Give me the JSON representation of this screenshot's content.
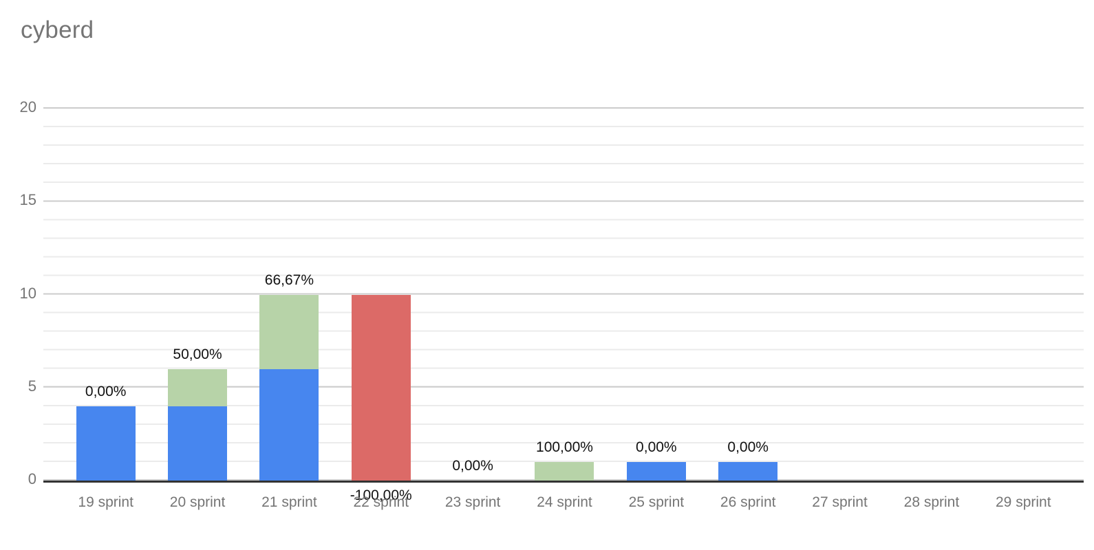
{
  "title": "cyberd",
  "colors": {
    "bar_blue": "#4786ef",
    "bar_green": "#b7d3a8",
    "bar_red": "#dc6a67",
    "axis_line": "#333333",
    "grid_major": "#cccccc",
    "grid_minor": "#ebebeb",
    "axis_text": "#757575",
    "bar_label_text": "#111111",
    "title_text": "#757575",
    "background": "#ffffff"
  },
  "chart_data": {
    "type": "bar",
    "stacked": true,
    "title": "cyberd",
    "xlabel": "",
    "ylabel": "",
    "grid": true,
    "legend": "none",
    "y_axis": {
      "min": 0,
      "max": 20,
      "major_step": 5,
      "minor_step": 1,
      "ticks": [
        0,
        5,
        10,
        15,
        20
      ]
    },
    "categories": [
      "19 sprint",
      "20 sprint",
      "21 sprint",
      "22 sprint",
      "23 sprint",
      "24 sprint",
      "25 sprint",
      "26 sprint",
      "27 sprint",
      "28 sprint",
      "29 sprint"
    ],
    "series": [
      {
        "name": "series-blue",
        "color": "#4786ef",
        "values": [
          4,
          4,
          6,
          0,
          0,
          0,
          1,
          1,
          0,
          0,
          0
        ]
      },
      {
        "name": "series-green",
        "color": "#b7d3a8",
        "values": [
          0,
          2,
          4,
          0,
          0,
          1,
          0,
          0,
          0,
          0,
          0
        ]
      },
      {
        "name": "series-red",
        "color": "#dc6a67",
        "values": [
          0,
          0,
          0,
          10,
          0,
          0,
          0,
          0,
          0,
          0,
          0
        ]
      }
    ],
    "bar_labels": [
      {
        "text": "0,00%",
        "position": "above"
      },
      {
        "text": "50,00%",
        "position": "above"
      },
      {
        "text": "66,67%",
        "position": "above"
      },
      {
        "text": "-100,00%",
        "position": "below"
      },
      {
        "text": "0,00%",
        "position": "above"
      },
      {
        "text": "100,00%",
        "position": "above"
      },
      {
        "text": "0,00%",
        "position": "above"
      },
      {
        "text": "0,00%",
        "position": "above"
      },
      {
        "text": "",
        "position": "above"
      },
      {
        "text": "",
        "position": "above"
      },
      {
        "text": "",
        "position": "above"
      }
    ]
  }
}
